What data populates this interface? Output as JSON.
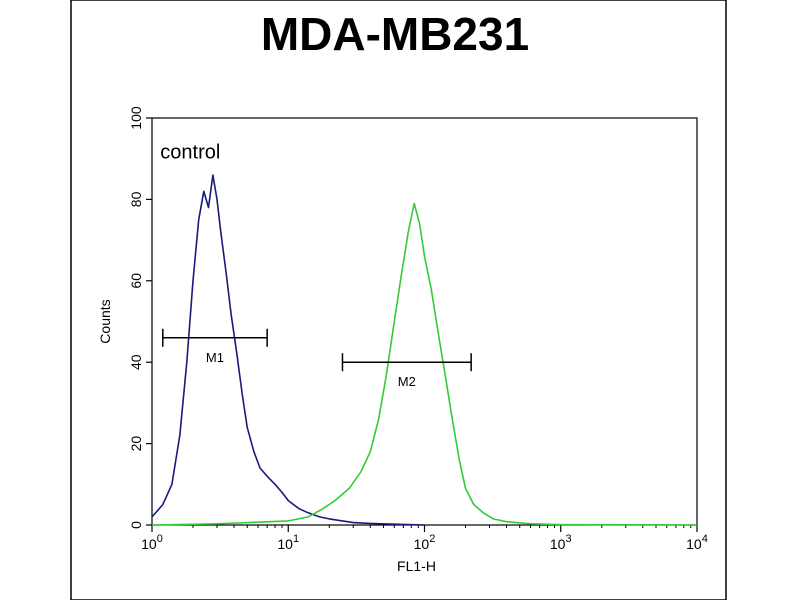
{
  "chart_data": {
    "type": "line",
    "title": "MDA-MB231",
    "xlabel": "FL1-H",
    "ylabel": "Counts",
    "x_scale": "log",
    "xlim": [
      1,
      10000
    ],
    "ylim": [
      0,
      100
    ],
    "x_ticks": [
      {
        "value": 1,
        "base": "10",
        "exp": "0"
      },
      {
        "value": 10,
        "base": "10",
        "exp": "1"
      },
      {
        "value": 100,
        "base": "10",
        "exp": "2"
      },
      {
        "value": 1000,
        "base": "10",
        "exp": "3"
      },
      {
        "value": 10000,
        "base": "10",
        "exp": "4"
      }
    ],
    "y_ticks": [
      "0",
      "20",
      "40",
      "60",
      "80",
      "100"
    ],
    "grid": false,
    "annotation": "control",
    "series": [
      {
        "color": "#1a1a7a",
        "x": [
          1.0,
          1.2,
          1.4,
          1.6,
          1.8,
          2.0,
          2.2,
          2.4,
          2.6,
          2.8,
          3.0,
          3.2,
          3.5,
          3.8,
          4.2,
          4.6,
          5.0,
          5.6,
          6.2,
          7.0,
          8.0,
          9.0,
          10.0,
          12.0,
          14.0,
          17.0,
          20.0,
          25.0,
          30.0,
          40.0,
          60.0,
          100.0
        ],
        "y": [
          2,
          5,
          10,
          22,
          40,
          60,
          75,
          82,
          78,
          86,
          80,
          72,
          62,
          52,
          42,
          32,
          24,
          18,
          14,
          12,
          10,
          8,
          6,
          4,
          3,
          2,
          1.5,
          1,
          0.6,
          0.4,
          0.2,
          0
        ]
      },
      {
        "color": "#33cc33",
        "x": [
          1.0,
          3.0,
          10.0,
          14.0,
          18.0,
          22.0,
          28.0,
          34.0,
          40.0,
          46.0,
          52.0,
          60.0,
          68.0,
          76.0,
          84.0,
          92.0,
          100.0,
          112.0,
          125.0,
          140.0,
          160.0,
          180.0,
          200.0,
          230.0,
          270.0,
          320.0,
          400.0,
          600.0,
          1000.0,
          10000.0
        ],
        "y": [
          0,
          0.3,
          1,
          2,
          4,
          6,
          9,
          13,
          18,
          26,
          36,
          50,
          62,
          72,
          79,
          74,
          66,
          58,
          48,
          38,
          26,
          16,
          9,
          5,
          3,
          1.5,
          0.8,
          0.3,
          0.1,
          0
        ]
      }
    ],
    "markers": [
      {
        "label": "M1",
        "x_start": 1.2,
        "x_end": 7.0,
        "y": 46
      },
      {
        "label": "M2",
        "x_start": 25.0,
        "x_end": 220.0,
        "y": 40
      }
    ]
  }
}
